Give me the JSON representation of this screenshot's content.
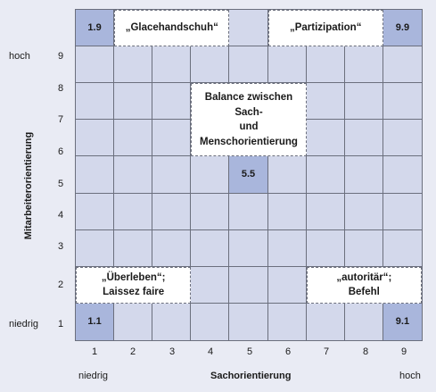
{
  "quadrant_labels": {
    "top_left": "„Glacehandschuh“",
    "top_right": "„Partizipation“",
    "center_line1": "Balance zwischen Sach-",
    "center_line2": "und Menschorientierung",
    "bottom_left_line1": "„Überleben“;",
    "bottom_left_line2": "Laissez faire",
    "bottom_right_line1": "„autoritär“;",
    "bottom_right_line2": "Befehl"
  },
  "points": {
    "p19": "1.9",
    "p99": "9.9",
    "p55": "5.5",
    "p11": "1.1",
    "p91": "9.1"
  },
  "y_axis": {
    "title": "Mitarbeiterorientierung",
    "ticks": [
      "9",
      "8",
      "7",
      "6",
      "5",
      "4",
      "3",
      "2",
      "1"
    ],
    "high": "hoch",
    "low": "niedrig"
  },
  "x_axis": {
    "title": "Sachorientierung",
    "ticks": [
      "1",
      "2",
      "3",
      "4",
      "5",
      "6",
      "7",
      "8",
      "9"
    ],
    "low": "niedrig",
    "high": "hoch"
  },
  "colors": {
    "cell": "#d3d8eb",
    "highlight": "#a9b6dc",
    "label_box": "#ffffff",
    "background": "#e9ebf4"
  }
}
